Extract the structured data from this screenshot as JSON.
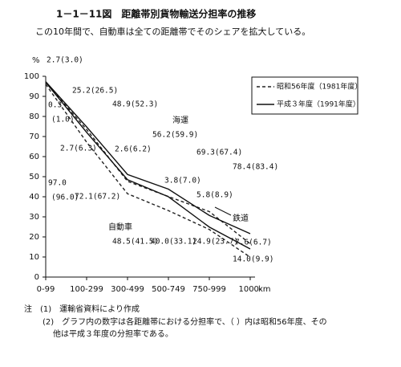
{
  "chart_data": {
    "type": "stacked_line",
    "title": "1－1－11図　距離帯別貨物輸送分担率の推移",
    "subtitle": "この10年間で、自動車は全ての距離帯でそのシェアを拡大している。",
    "y_label": "%",
    "x_unit": "km",
    "categories": [
      "0-99",
      "100-299",
      "300-499",
      "500-749",
      "750-999",
      "1000-"
    ],
    "ylim": [
      0,
      100
    ],
    "yticks": [
      0,
      10,
      20,
      30,
      40,
      50,
      60,
      70,
      80,
      90,
      100
    ],
    "shares": [
      "自動車",
      "鉄道",
      "海運"
    ],
    "series": [
      {
        "name": "昭和56年度（1981年度）",
        "line_style": "dashed",
        "color": "#222222",
        "values": [
          [
            96.0,
            67.2,
            41.5,
            33.1,
            23.7,
            9.9
          ],
          [
            1.0,
            6.3,
            6.2,
            7.0,
            8.9,
            6.7
          ],
          [
            3.0,
            26.5,
            52.3,
            59.9,
            67.4,
            83.4
          ]
        ],
        "value_labels": [
          [
            "(96.0)",
            "(67.2)",
            "(41.5)",
            "(33.1)",
            "(23.7)",
            "(9.9)"
          ],
          [
            "(1.0)",
            "(6.3)",
            "(6.2)",
            "(7.0)",
            "(8.9)",
            "(6.7)"
          ],
          [
            "(3.0)",
            "(26.5)",
            "(52.3)",
            "(59.9)",
            "(67.4)",
            "(83.4)"
          ]
        ]
      },
      {
        "name": "平成３年度（1991年度）",
        "line_style": "solid",
        "color": "#111111",
        "values": [
          [
            97.0,
            72.1,
            48.5,
            40.0,
            24.9,
            14.0
          ],
          [
            0.3,
            2.7,
            2.6,
            3.8,
            5.8,
            7.6
          ],
          [
            2.7,
            25.2,
            48.9,
            56.2,
            69.3,
            78.4
          ]
        ],
        "value_labels": [
          [
            "97.0",
            "72.1",
            "48.5",
            "40.0",
            "24.9",
            "14.0"
          ],
          [
            "0.3",
            "2.7",
            "2.6",
            "3.8",
            "5.8",
            "7.6"
          ],
          [
            "2.7",
            "25.2",
            "48.9",
            "56.2",
            "69.3",
            "78.4"
          ]
        ]
      }
    ],
    "notes": [
      "注　(1)　運輸省資料により作成",
      "(2)　グラフ内の数字は各距離帯における分担率で、（ ）内は昭和56年度、その",
      "他は平成３年度の分担率である。"
    ]
  }
}
